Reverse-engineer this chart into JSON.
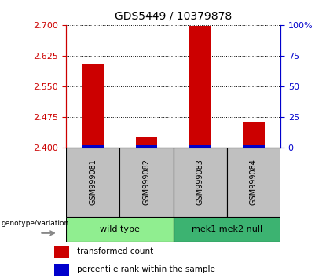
{
  "title": "GDS5449 / 10379878",
  "samples": [
    "GSM999081",
    "GSM999082",
    "GSM999083",
    "GSM999084"
  ],
  "red_values": [
    2.605,
    2.425,
    2.698,
    2.462
  ],
  "blue_values": [
    2.401,
    2.401,
    2.401,
    2.401
  ],
  "ylim": [
    2.4,
    2.7
  ],
  "yticks_left": [
    2.4,
    2.475,
    2.55,
    2.625,
    2.7
  ],
  "yticks_right": [
    0,
    25,
    50,
    75,
    100
  ],
  "groups": [
    {
      "label": "wild type",
      "samples": [
        0,
        1
      ],
      "color": "#90EE90"
    },
    {
      "label": "mek1 mek2 null",
      "samples": [
        2,
        3
      ],
      "color": "#3CB371"
    }
  ],
  "group_label": "genotype/variation",
  "legend_red": "transformed count",
  "legend_blue": "percentile rank within the sample",
  "bar_color_red": "#CC0000",
  "bar_color_blue": "#0000CC",
  "bar_width": 0.4,
  "grid_color": "black",
  "sample_box_color": "#C0C0C0",
  "left_tick_color": "#CC0000",
  "right_tick_color": "#0000CC"
}
